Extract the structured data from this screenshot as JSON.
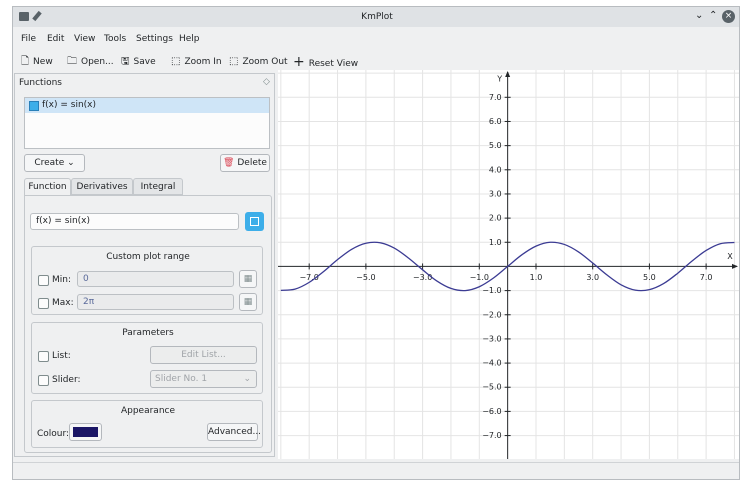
{
  "window": {
    "title": "KmPlot"
  },
  "menu": [
    "File",
    "Edit",
    "View",
    "Tools",
    "Settings",
    "Help"
  ],
  "toolbar": [
    "New",
    "Open...",
    "Save",
    "Zoom In",
    "Zoom Out",
    "Reset View"
  ],
  "functions_panel": {
    "title": "Functions",
    "list": [
      "f(x) = sin(x)"
    ],
    "create": "Create",
    "delete": "Delete",
    "tabs": [
      "Function",
      "Derivatives",
      "Integral"
    ],
    "equation": "f(x) = sin(x)",
    "plot_range": {
      "title": "Custom plot range",
      "min_label": "Min:",
      "min": "0",
      "max_label": "Max:",
      "max": "2π"
    },
    "parameters": {
      "title": "Parameters",
      "list_label": "List:",
      "edit_list": "Edit List...",
      "slider_label": "Slider:",
      "slider": "Slider No. 1"
    },
    "appearance": {
      "title": "Appearance",
      "colour_label": "Colour:",
      "colour": "#1b1666",
      "advanced": "Advanced..."
    }
  },
  "chart_data": {
    "type": "line",
    "xlabel": "X",
    "ylabel": "Y",
    "x": [
      -8,
      -7.5,
      -7,
      -6.5,
      -6,
      -5.5,
      -5,
      -4.5,
      -4,
      -3.5,
      -3,
      -2.5,
      -2,
      -1.5,
      -1,
      -0.5,
      0,
      0.5,
      1,
      1.5,
      2,
      2.5,
      3,
      3.5,
      4,
      4.5,
      5,
      5.5,
      6,
      6.5,
      7,
      7.5,
      8
    ],
    "series": [
      {
        "color": "#3b3b93",
        "values": [
          -0.99,
          -0.94,
          -0.66,
          -0.22,
          0.28,
          0.71,
          0.96,
          0.98,
          0.76,
          0.35,
          -0.14,
          -0.6,
          -0.91,
          -1.0,
          -0.84,
          -0.48,
          0,
          0.48,
          0.84,
          1.0,
          0.91,
          0.6,
          0.14,
          -0.35,
          -0.76,
          -0.98,
          -0.96,
          -0.71,
          -0.28,
          0.22,
          0.66,
          0.94,
          0.99
        ]
      }
    ],
    "xlim": [
      -8.1,
      8.16
    ],
    "ylim": [
      -7.97,
      8.13
    ],
    "xticks": [
      {
        "value": -7,
        "label": "−7.0"
      },
      {
        "value": -5,
        "label": "−5.0"
      },
      {
        "value": -3,
        "label": "−3.0"
      },
      {
        "value": -1,
        "label": "−1.0"
      },
      {
        "value": 1,
        "label": "1.0"
      },
      {
        "value": 3,
        "label": "3.0"
      },
      {
        "value": 5,
        "label": "5.0"
      },
      {
        "value": 7,
        "label": "7.0"
      }
    ],
    "yticks": [
      {
        "value": 7,
        "label": "7.0"
      },
      {
        "value": 6,
        "label": "6.0"
      },
      {
        "value": 5,
        "label": "5.0"
      },
      {
        "value": 4,
        "label": "4.0"
      },
      {
        "value": 3,
        "label": "3.0"
      },
      {
        "value": 2,
        "label": "2.0"
      },
      {
        "value": 1,
        "label": "1.0"
      },
      {
        "value": -1,
        "label": "−1.0"
      },
      {
        "value": -2,
        "label": "−2.0"
      },
      {
        "value": -3,
        "label": "−3.0"
      },
      {
        "value": -4,
        "label": "−4.0"
      },
      {
        "value": -5,
        "label": "−5.0"
      },
      {
        "value": -6,
        "label": "−6.0"
      },
      {
        "value": -7,
        "label": "−7.0"
      }
    ],
    "grid": true
  }
}
